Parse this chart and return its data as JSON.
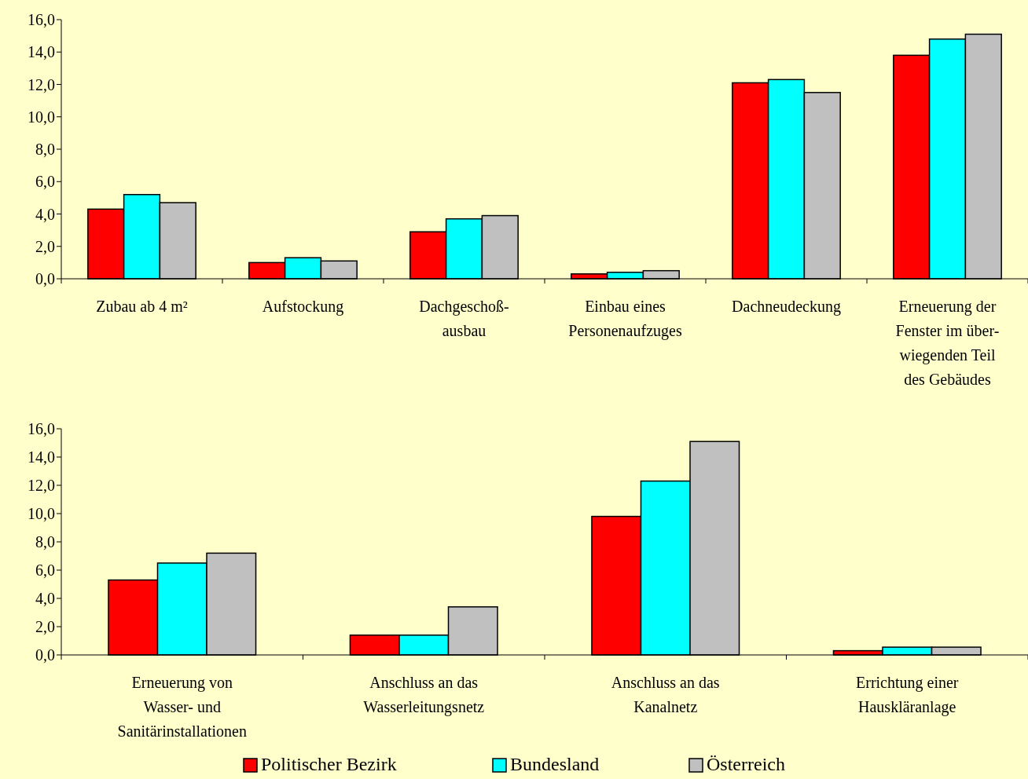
{
  "chart_data": [
    {
      "type": "bar",
      "categories": [
        "Zubau ab 4 m²",
        "Aufstockung",
        "Dachgeschoß-\nausbau",
        "Einbau eines\nPersonenaufzuges",
        "Dachneudeckung",
        "Erneuerung der\nFenster im über-\nwiegenden Teil\ndes Gebäudes"
      ],
      "series": [
        {
          "color": "#ff0000",
          "values": [
            4.3,
            1.0,
            2.9,
            0.3,
            12.1,
            13.8
          ]
        },
        {
          "color": "#00ffff",
          "values": [
            5.2,
            1.3,
            3.7,
            0.4,
            12.3,
            14.8
          ]
        },
        {
          "color": "#c0c0c0",
          "values": [
            4.7,
            1.1,
            3.9,
            0.5,
            11.5,
            15.1
          ]
        }
      ],
      "ylim": [
        0,
        16
      ],
      "yticks": [
        {
          "value": 0,
          "label": "0,0"
        },
        {
          "value": 2,
          "label": "2,0"
        },
        {
          "value": 4,
          "label": "4,0"
        },
        {
          "value": 6,
          "label": "6,0"
        },
        {
          "value": 8,
          "label": "8,0"
        },
        {
          "value": 10,
          "label": "10,0"
        },
        {
          "value": 12,
          "label": "12,0"
        },
        {
          "value": 14,
          "label": "14,0"
        },
        {
          "value": 16,
          "label": "16,0"
        }
      ],
      "grid": false,
      "legend": false
    },
    {
      "type": "bar",
      "categories": [
        "Erneuerung von\nWasser- und\nSanitärinstallationen",
        "Anschluss an das\nWasserleitungsnetz",
        "Anschluss an das\nKanalnetz",
        "Errichtung einer\nHauskläranlage"
      ],
      "series": [
        {
          "name": "Politischer Bezirk",
          "color": "#ff0000",
          "values": [
            5.3,
            1.4,
            9.8,
            0.3
          ]
        },
        {
          "name": "Bundesland",
          "color": "#00ffff",
          "values": [
            6.5,
            1.4,
            12.3,
            0.55
          ]
        },
        {
          "name": "Österreich",
          "color": "#c0c0c0",
          "values": [
            7.2,
            3.4,
            15.1,
            0.55
          ]
        }
      ],
      "ylim": [
        0,
        16
      ],
      "yticks": [
        {
          "value": 0,
          "label": "0,0"
        },
        {
          "value": 2,
          "label": "2,0"
        },
        {
          "value": 4,
          "label": "4,0"
        },
        {
          "value": 6,
          "label": "6,0"
        },
        {
          "value": 8,
          "label": "8,0"
        },
        {
          "value": 10,
          "label": "10,0"
        },
        {
          "value": 12,
          "label": "12,0"
        },
        {
          "value": 14,
          "label": "14,0"
        },
        {
          "value": 16,
          "label": "16,0"
        }
      ],
      "grid": false,
      "legend": "bottom"
    }
  ]
}
